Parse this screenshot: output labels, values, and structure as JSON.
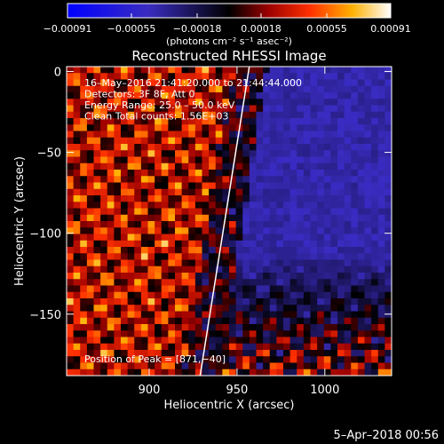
{
  "chart_data": {
    "type": "heatmap",
    "title": "Reconstructed RHESSI Image",
    "xlabel": "Heliocentric X (arcsec)",
    "ylabel": "Heliocentric Y (arcsec)",
    "xlim": [
      853,
      1038
    ],
    "ylim": [
      -188,
      3
    ],
    "x_ticks": [
      900,
      950,
      1000
    ],
    "y_ticks": [
      0,
      -50,
      -100,
      -150
    ],
    "x_tick_labels": [
      "900",
      "950",
      "1000"
    ],
    "y_tick_labels": [
      "0",
      "−50",
      "−100",
      "−150"
    ],
    "colorbar": {
      "min": -0.00091,
      "max": 0.00091,
      "tick_values": [
        -0.00091,
        -0.00055,
        -0.00018,
        0.00018,
        0.00055,
        0.00091
      ],
      "tick_labels": [
        "−0.00091",
        "−0.00055",
        "−0.00018",
        "0.00018",
        "0.00055",
        "0.00091"
      ],
      "units_label": "(photons cm⁻² s⁻¹ asec⁻²)"
    },
    "info_lines": [
      "16–May–2016 21:41:20.000 to 21:44:44.000",
      "Detectors: 3F 8F, Att 0",
      "Energy Range: 25.0 – 50.0 keV",
      "Clean    Total counts: 1.56E+03"
    ],
    "peak_label": "Position of Peak = [871,−40]",
    "peak": [
      871,
      -40
    ],
    "limb_line": [
      [
        929,
        -188
      ],
      [
        957,
        3
      ]
    ],
    "grid": false
  },
  "footer": {
    "date": "5–Apr–2018 00:56"
  },
  "colors": {
    "background": "#000000",
    "text": "#ffffff",
    "colormap": [
      "#0000ff",
      "#5a2fb0",
      "#000000",
      "#8b0000",
      "#ff2000",
      "#ff9000",
      "#ffffff"
    ]
  }
}
